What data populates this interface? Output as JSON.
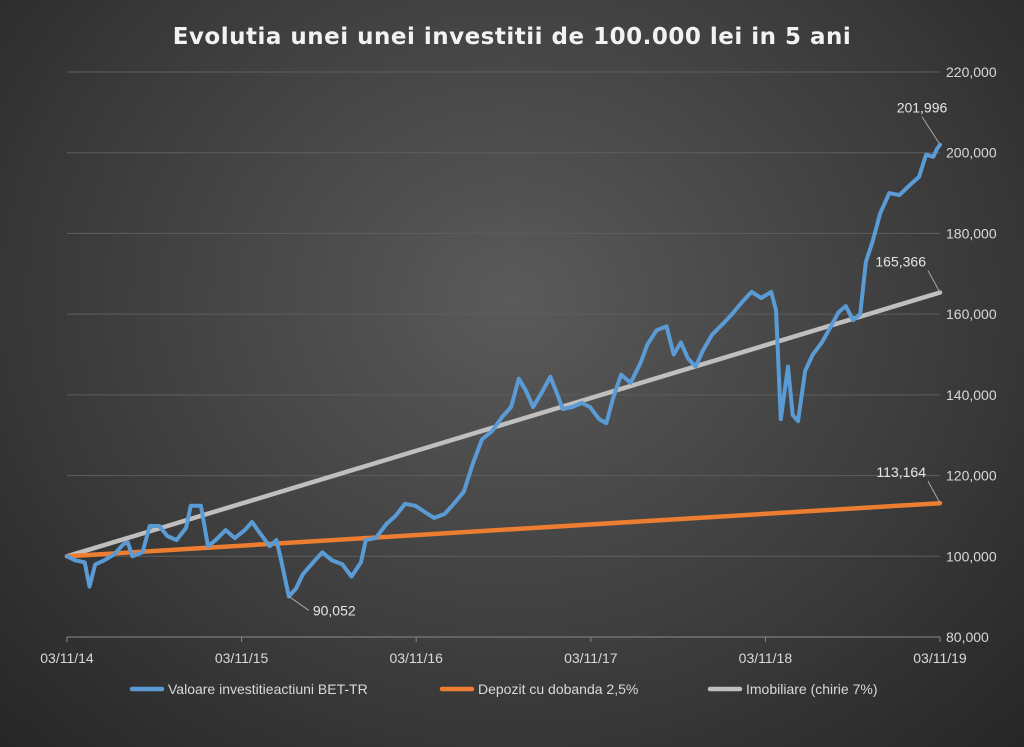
{
  "chart_data": {
    "type": "line",
    "title": "Evolutia unei unei investitii de 100.000 lei in 5 ani",
    "xlabel": "",
    "ylabel": "",
    "x_tick_labels": [
      "03/11/14",
      "03/11/15",
      "03/11/16",
      "03/11/17",
      "03/11/18",
      "03/11/19"
    ],
    "y_tick_labels": [
      "80,000",
      "100,000",
      "120,000",
      "140,000",
      "160,000",
      "180,000",
      "200,000",
      "220,000"
    ],
    "ylim": [
      80000,
      220000
    ],
    "xlim": [
      "2014-11-03",
      "2019-11-03"
    ],
    "grid": "horizontal",
    "legend_position": "bottom",
    "series": [
      {
        "name": "Valoare investitieactiuni BET-TR",
        "color": "#5b9bd5",
        "points": [
          [
            "2014-11-03",
            100000
          ],
          [
            "2014-11-20",
            99000
          ],
          [
            "2014-12-10",
            98500
          ],
          [
            "2014-12-20",
            92500
          ],
          [
            "2015-01-01",
            98000
          ],
          [
            "2015-01-20",
            99000
          ],
          [
            "2015-02-10",
            100500
          ],
          [
            "2015-03-01",
            103000
          ],
          [
            "2015-03-10",
            103500
          ],
          [
            "2015-03-20",
            100000
          ],
          [
            "2015-04-10",
            101000
          ],
          [
            "2015-04-25",
            107500
          ],
          [
            "2015-05-15",
            107500
          ],
          [
            "2015-06-01",
            105000
          ],
          [
            "2015-06-20",
            104000
          ],
          [
            "2015-07-10",
            107000
          ],
          [
            "2015-07-20",
            112500
          ],
          [
            "2015-08-10",
            112500
          ],
          [
            "2015-08-25",
            102500
          ],
          [
            "2015-09-10",
            104000
          ],
          [
            "2015-10-01",
            106500
          ],
          [
            "2015-10-20",
            104500
          ],
          [
            "2015-11-10",
            106500
          ],
          [
            "2015-11-25",
            108500
          ],
          [
            "2015-12-10",
            106000
          ],
          [
            "2016-01-01",
            102500
          ],
          [
            "2016-01-15",
            104000
          ],
          [
            "2016-01-25",
            99000
          ],
          [
            "2016-02-10",
            90052
          ],
          [
            "2016-02-25",
            92000
          ],
          [
            "2016-03-10",
            95500
          ],
          [
            "2016-04-01",
            98500
          ],
          [
            "2016-04-20",
            101000
          ],
          [
            "2016-05-10",
            99000
          ],
          [
            "2016-06-01",
            98000
          ],
          [
            "2016-06-20",
            95000
          ],
          [
            "2016-07-10",
            98500
          ],
          [
            "2016-07-20",
            104000
          ],
          [
            "2016-08-10",
            104500
          ],
          [
            "2016-09-01",
            108000
          ],
          [
            "2016-09-20",
            110000
          ],
          [
            "2016-10-10",
            113000
          ],
          [
            "2016-11-01",
            112500
          ],
          [
            "2016-11-20",
            111000
          ],
          [
            "2016-12-10",
            109500
          ],
          [
            "2017-01-01",
            110500
          ],
          [
            "2017-01-20",
            113000
          ],
          [
            "2017-02-10",
            116000
          ],
          [
            "2017-03-01",
            123000
          ],
          [
            "2017-03-20",
            129000
          ],
          [
            "2017-04-10",
            131000
          ],
          [
            "2017-05-01",
            134500
          ],
          [
            "2017-05-20",
            137000
          ],
          [
            "2017-06-05",
            144000
          ],
          [
            "2017-06-20",
            141000
          ],
          [
            "2017-07-05",
            137000
          ],
          [
            "2017-07-25",
            141000
          ],
          [
            "2017-08-10",
            144500
          ],
          [
            "2017-08-25",
            140000
          ],
          [
            "2017-09-05",
            136500
          ],
          [
            "2017-09-25",
            137000
          ],
          [
            "2017-10-15",
            138000
          ],
          [
            "2017-11-01",
            137000
          ],
          [
            "2017-11-20",
            134000
          ],
          [
            "2017-12-05",
            133000
          ],
          [
            "2017-12-20",
            139500
          ],
          [
            "2018-01-05",
            145000
          ],
          [
            "2018-01-25",
            143000
          ],
          [
            "2018-02-15",
            148000
          ],
          [
            "2018-03-01",
            152500
          ],
          [
            "2018-03-20",
            156000
          ],
          [
            "2018-04-10",
            157000
          ],
          [
            "2018-04-25",
            150000
          ],
          [
            "2018-05-10",
            153000
          ],
          [
            "2018-05-25",
            149000
          ],
          [
            "2018-06-10",
            147000
          ],
          [
            "2018-06-25",
            151000
          ],
          [
            "2018-07-15",
            155000
          ],
          [
            "2018-08-05",
            157500
          ],
          [
            "2018-08-25",
            160000
          ],
          [
            "2018-09-15",
            163000
          ],
          [
            "2018-10-05",
            165500
          ],
          [
            "2018-10-25",
            164000
          ],
          [
            "2018-11-15",
            165500
          ],
          [
            "2018-11-25",
            161000
          ],
          [
            "2018-12-05",
            134000
          ],
          [
            "2018-12-20",
            147000
          ],
          [
            "2018-12-30",
            135000
          ],
          [
            "2019-01-10",
            133500
          ],
          [
            "2019-01-25",
            146000
          ],
          [
            "2019-02-10",
            150000
          ],
          [
            "2019-03-01",
            153000
          ],
          [
            "2019-03-20",
            157000
          ],
          [
            "2019-04-05",
            160500
          ],
          [
            "2019-04-20",
            162000
          ],
          [
            "2019-05-05",
            158500
          ],
          [
            "2019-05-20",
            160000
          ],
          [
            "2019-06-01",
            173000
          ],
          [
            "2019-06-15",
            178000
          ],
          [
            "2019-07-01",
            185000
          ],
          [
            "2019-07-20",
            190000
          ],
          [
            "2019-08-10",
            189500
          ],
          [
            "2019-09-01",
            192000
          ],
          [
            "2019-09-20",
            194000
          ],
          [
            "2019-10-05",
            199500
          ],
          [
            "2019-10-20",
            199000
          ],
          [
            "2019-10-28",
            201000
          ],
          [
            "2019-11-03",
            201996
          ]
        ]
      },
      {
        "name": "Depozit cu dobanda 2,5%",
        "color": "#ed7d31",
        "points": [
          [
            "2014-11-03",
            100000
          ],
          [
            "2019-11-03",
            113164
          ]
        ]
      },
      {
        "name": "Imobiliare (chirie 7%)",
        "color": "#bfbfbf",
        "points": [
          [
            "2014-11-03",
            100000
          ],
          [
            "2019-11-03",
            165366
          ]
        ]
      }
    ],
    "annotations": [
      {
        "label": "201,996",
        "x": "2019-11-03",
        "y": 201996
      },
      {
        "label": "165,366",
        "x": "2019-11-03",
        "y": 165366
      },
      {
        "label": "113,164",
        "x": "2019-11-03",
        "y": 113164
      },
      {
        "label": "90,052",
        "x": "2016-02-10",
        "y": 90052
      }
    ]
  }
}
